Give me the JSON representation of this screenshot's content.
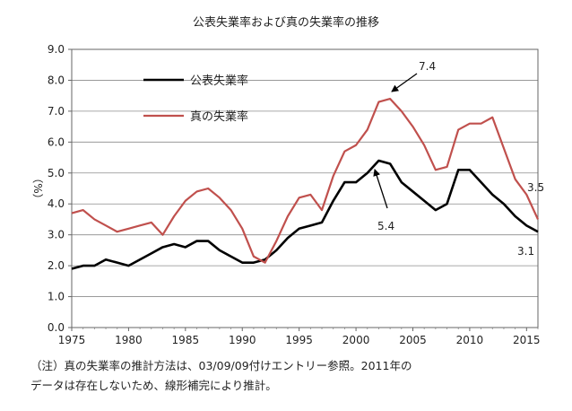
{
  "chart_data": {
    "type": "line",
    "title": "公表失業率および真の失業率の推移",
    "ylabel": "（%）",
    "xlabel": "",
    "xlim": [
      1975,
      2016
    ],
    "ylim": [
      0,
      9
    ],
    "grid": true,
    "legend_position": "top-left",
    "x_ticks": [
      1975,
      1980,
      1985,
      1990,
      1995,
      2000,
      2005,
      2010,
      2015
    ],
    "y_ticks": [
      "0.0",
      "1.0",
      "2.0",
      "3.0",
      "4.0",
      "5.0",
      "6.0",
      "7.0",
      "8.0",
      "9.0"
    ],
    "x": [
      1975,
      1976,
      1977,
      1978,
      1979,
      1980,
      1981,
      1982,
      1983,
      1984,
      1985,
      1986,
      1987,
      1988,
      1989,
      1990,
      1991,
      1992,
      1993,
      1994,
      1995,
      1996,
      1997,
      1998,
      1999,
      2000,
      2001,
      2002,
      2003,
      2004,
      2005,
      2006,
      2007,
      2008,
      2009,
      2010,
      2011,
      2012,
      2013,
      2014,
      2015,
      2016
    ],
    "series": [
      {
        "name": "公表失業率",
        "color": "#000000",
        "values": [
          1.9,
          2.0,
          2.0,
          2.2,
          2.1,
          2.0,
          2.2,
          2.4,
          2.6,
          2.7,
          2.6,
          2.8,
          2.8,
          2.5,
          2.3,
          2.1,
          2.1,
          2.2,
          2.5,
          2.9,
          3.2,
          3.3,
          3.4,
          4.1,
          4.7,
          4.7,
          5.0,
          5.4,
          5.3,
          4.7,
          4.4,
          4.1,
          3.8,
          4.0,
          5.1,
          5.1,
          4.7,
          4.3,
          4.0,
          3.6,
          3.3,
          3.1
        ]
      },
      {
        "name": "真の失業率",
        "color": "#c0504d",
        "values": [
          3.7,
          3.8,
          3.5,
          3.3,
          3.1,
          3.2,
          3.3,
          3.4,
          3.0,
          3.6,
          4.1,
          4.4,
          4.5,
          4.2,
          3.8,
          3.2,
          2.3,
          2.1,
          2.8,
          3.6,
          4.2,
          4.3,
          3.8,
          4.9,
          5.7,
          5.9,
          6.4,
          7.3,
          7.4,
          7.0,
          6.5,
          5.9,
          5.1,
          5.2,
          6.4,
          6.6,
          6.6,
          6.8,
          5.8,
          4.8,
          4.3,
          3.5
        ]
      }
    ],
    "annotations": [
      {
        "text": "7.4",
        "x": 2003,
        "y": 7.4
      },
      {
        "text": "5.4",
        "x": 2002,
        "y": 5.4
      },
      {
        "text": "3.5",
        "x": 2016,
        "y": 3.5
      },
      {
        "text": "3.1",
        "x": 2016,
        "y": 3.1
      }
    ]
  },
  "footnote": {
    "line1": "（注）真の失業率の推計方法は、03/09/09付けエントリー参照。2011年の",
    "line2": "データは存在しないため、線形補完により推計。"
  }
}
